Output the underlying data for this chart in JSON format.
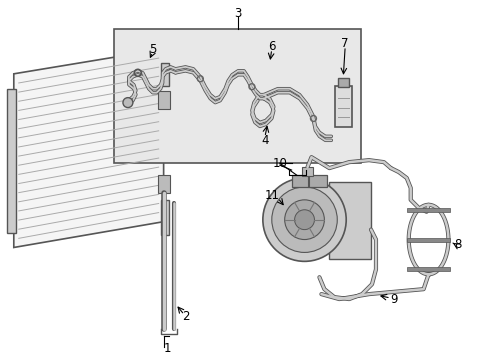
{
  "bg": "#ffffff",
  "lc": "#333333",
  "gray1": "#888888",
  "gray2": "#bbbbbb",
  "gray3": "#dddddd",
  "inset_bg": "#e8e8e8",
  "fs": 8.5
}
